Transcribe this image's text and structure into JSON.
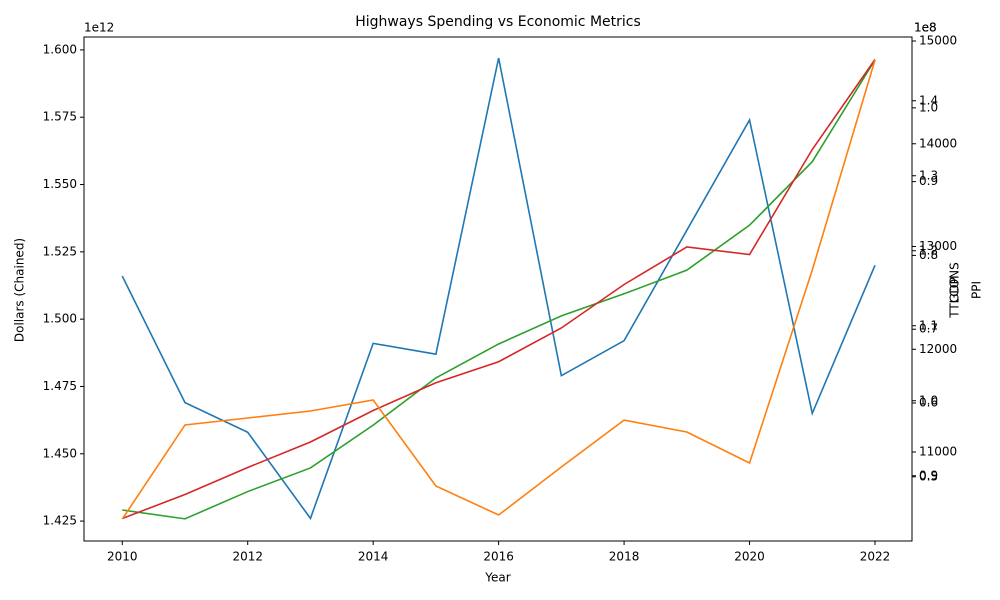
{
  "chart_data": {
    "type": "line",
    "title": "Highways Spending vs Economic Metrics",
    "xlabel": "Year",
    "x": [
      2010,
      2011,
      2012,
      2013,
      2014,
      2015,
      2016,
      2017,
      2018,
      2019,
      2020,
      2021,
      2022
    ],
    "xlim": [
      2009.39,
      2022.59
    ],
    "xticks": [
      2010,
      2012,
      2014,
      2016,
      2018,
      2020,
      2022
    ],
    "ylabel": "Dollars (Chained)",
    "y_offset": "1e12",
    "ylim": [
      1.4176,
      1.6048
    ],
    "yticks": [
      1.425,
      {
        "value": 1.45,
        "label": "1.450"
      },
      1.475,
      {
        "value": 1.5,
        "label": "1.500"
      },
      1.525,
      {
        "value": 1.55,
        "label": "1.550"
      },
      1.575,
      {
        "value": 1.6,
        "label": "1.600"
      }
    ],
    "y2label": "TTLCONS",
    "y2_offset": "1e8",
    "y2lim": [
      0.413,
      1.096
    ],
    "y2ticks": [
      0.5,
      0.6,
      0.7,
      0.8,
      0.9,
      {
        "value": 1.0,
        "label": "1.0"
      }
    ],
    "y3label": "GDP",
    "y3_offset": "1e8",
    "y3lim": [
      0.813,
      1.485
    ],
    "y3ticks": [
      0.9,
      {
        "value": 1.0,
        "label": "1.0"
      },
      1.1,
      1.2,
      1.3,
      1.4
    ],
    "y4label": "PPI",
    "y4lim": [
      10134,
      15039
    ],
    "y4ticks": [
      11000,
      12000,
      13000,
      14000,
      15000
    ],
    "series": [
      {
        "name": "Dollars (Chained)",
        "color": "#1f77b4",
        "axis": "y",
        "values": [
          1.516,
          1.469,
          1.458,
          1.426,
          1.491,
          1.487,
          1.597,
          1.479,
          1.492,
          1.533,
          1.574,
          1.465,
          1.52
        ]
      },
      {
        "name": "TTLCONS",
        "color": "#2ca02c",
        "axis": "y2",
        "values": [
          0.455,
          0.443,
          0.48,
          0.512,
          0.57,
          0.634,
          0.68,
          0.718,
          0.748,
          0.78,
          0.841,
          0.927,
          1.065
        ]
      },
      {
        "name": "GDP",
        "color": "#d62728",
        "axis": "y3",
        "values": [
          0.843,
          0.875,
          0.911,
          0.945,
          0.987,
          1.024,
          1.052,
          1.097,
          1.155,
          1.205,
          1.195,
          1.335,
          1.455
        ]
      },
      {
        "name": "PPI",
        "color": "#ff7f0e",
        "axis": "y4",
        "values": [
          10348,
          11263,
          11331,
          11399,
          11506,
          10669,
          10387,
          10854,
          11311,
          11195,
          10893,
          12771,
          14815
        ]
      }
    ]
  }
}
